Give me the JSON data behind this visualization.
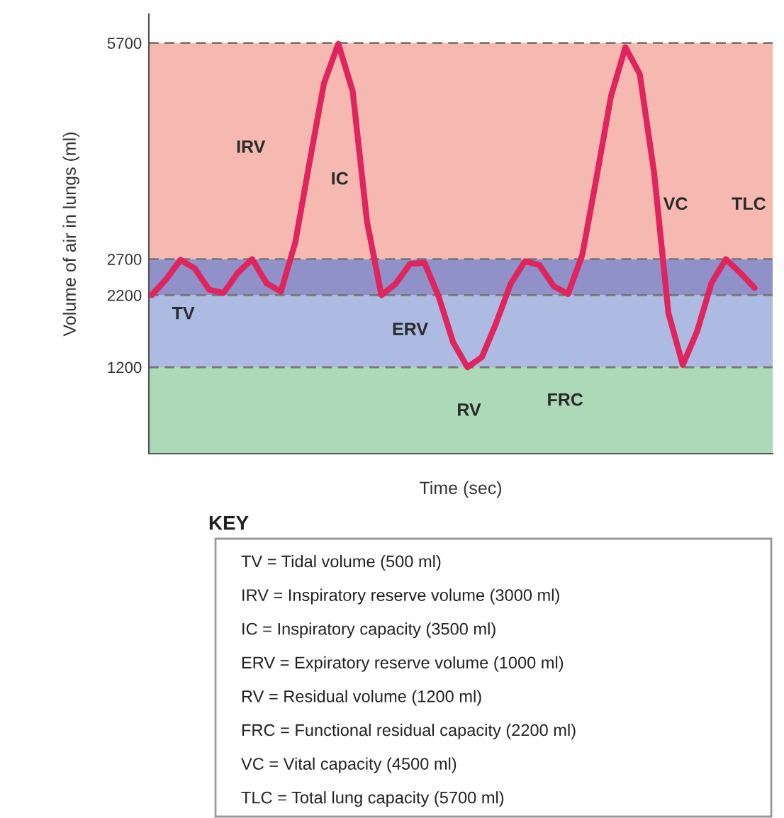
{
  "chart_data": {
    "type": "line",
    "xlabel": "Time (sec)",
    "ylabel": "Volume of air in lungs (ml)",
    "categories": [
      null,
      null,
      null,
      null,
      null,
      null,
      null,
      null,
      null,
      null,
      null,
      null,
      null,
      null,
      null,
      null,
      null,
      null,
      null,
      null,
      null,
      null,
      null,
      null,
      null,
      null,
      null,
      null,
      null,
      null,
      null,
      null,
      null,
      null,
      null,
      null,
      null,
      null,
      null,
      null,
      null,
      null,
      null
    ],
    "series": [
      {
        "color": "#e0245e",
        "values": [
          2200,
          2420,
          2690,
          2570,
          2275,
          2230,
          2510,
          2700,
          2365,
          2250,
          2930,
          4050,
          5140,
          5690,
          5030,
          3220,
          2200,
          2360,
          2635,
          2650,
          2175,
          1545,
          1200,
          1340,
          1815,
          2355,
          2670,
          2620,
          2325,
          2215,
          2760,
          3845,
          4965,
          5640,
          5270,
          3900,
          1950,
          1230,
          1700,
          2370,
          2700,
          2510,
          2300
        ]
      }
    ],
    "ylim": [
      0,
      6100
    ],
    "yticks": [
      1200,
      2200,
      2700,
      5700
    ],
    "grid": false,
    "legend": false,
    "marker": "none",
    "line_style": "solid",
    "bands": [
      {
        "axis": "y",
        "from": 0,
        "to": 1200,
        "color": "#acd9b8"
      },
      {
        "axis": "y",
        "from": 1200,
        "to": 2200,
        "color": "#adbbe2"
      },
      {
        "axis": "y",
        "from": 2200,
        "to": 2700,
        "color": "#8f91c8"
      },
      {
        "axis": "y",
        "from": 2700,
        "to": 5700,
        "color": "#f5b9b1"
      }
    ],
    "ref_lines": [
      {
        "axis": "y",
        "value": 1200,
        "line_style": "dashed",
        "color": "#777777"
      },
      {
        "axis": "y",
        "value": 2200,
        "line_style": "dashed",
        "color": "#777777"
      },
      {
        "axis": "y",
        "value": 2700,
        "line_style": "dashed",
        "color": "#777777"
      },
      {
        "axis": "y",
        "value": 5700,
        "line_style": "dashed",
        "color": "#777777"
      }
    ],
    "annotations": [
      "TV",
      "IRV",
      "IC",
      "ERV",
      "RV",
      "FRC",
      "VC",
      "TLC",
      "KEY",
      "TV = Tidal volume (500 ml)",
      "IRV = Inspiratory reserve volume (3000 ml)",
      "IC = Inspiratory capacity (3500 ml)",
      "ERV = Expiratory reserve volume (1000 ml)",
      "RV = Residual volume (1200 ml)",
      "FRC = Functional residual capacity (2200 ml)",
      "VC = Vital capacity (4500 ml)",
      "TLC = Total lung capacity (5700 ml)"
    ]
  }
}
